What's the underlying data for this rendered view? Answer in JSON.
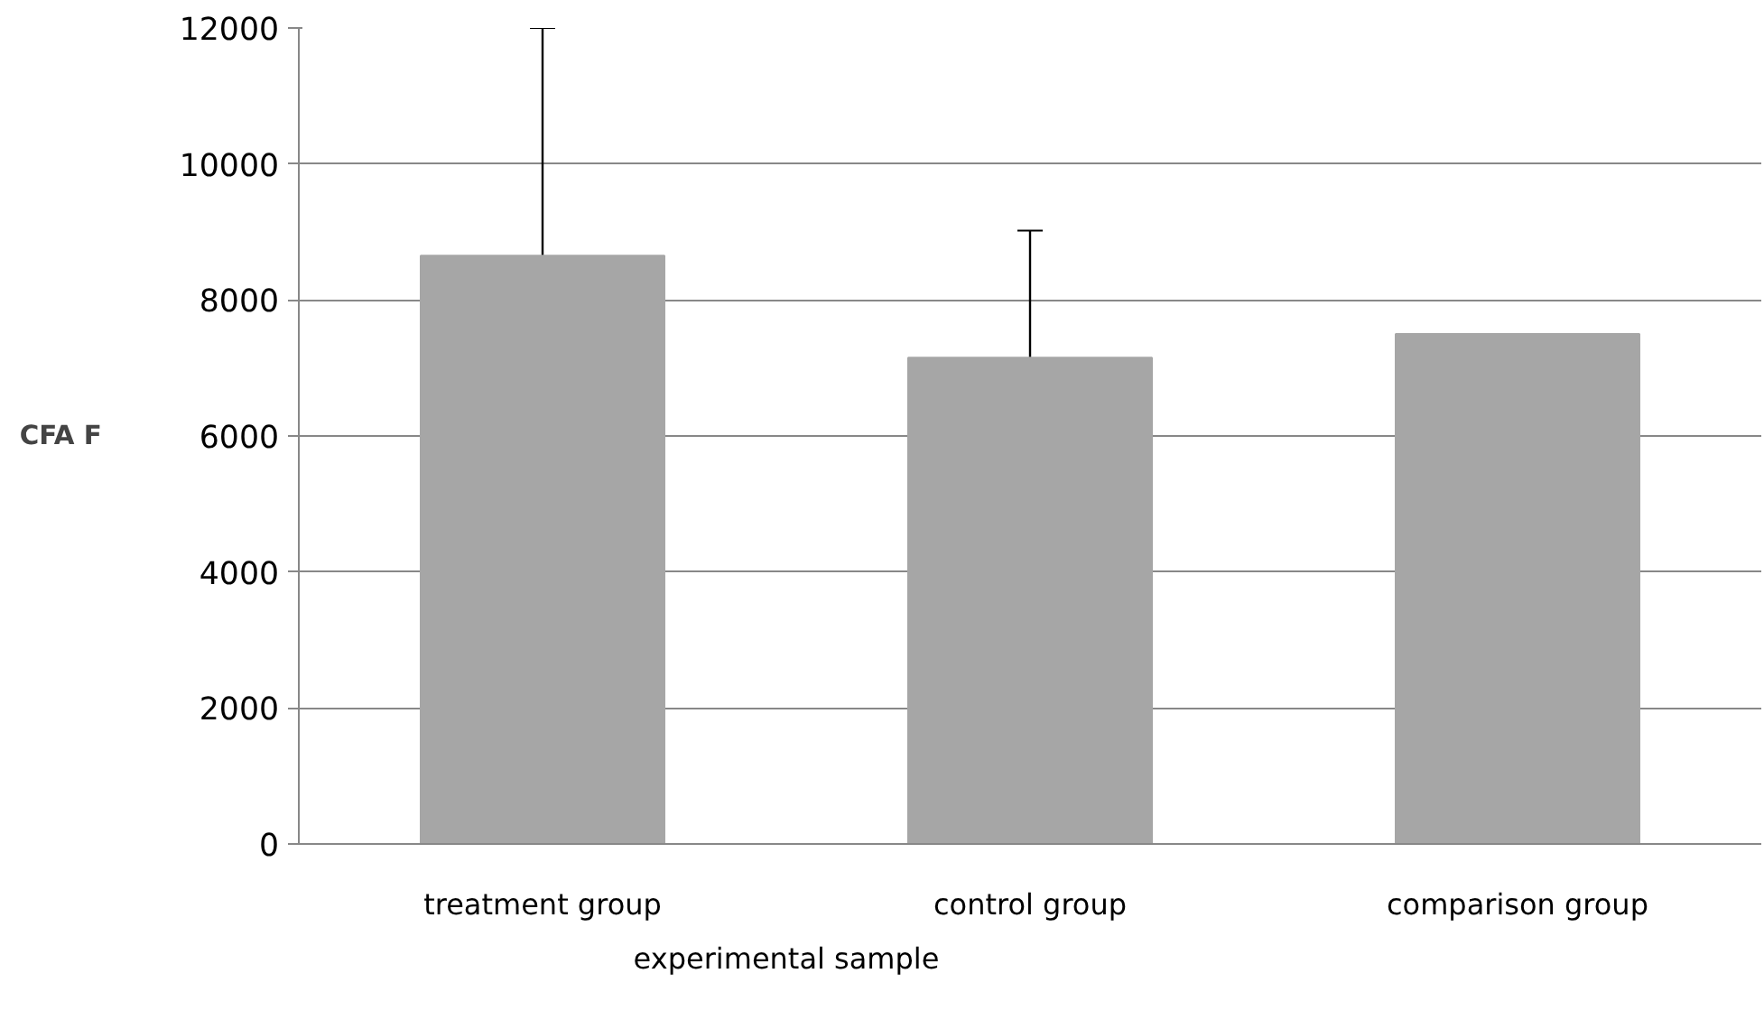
{
  "chart_data": {
    "type": "bar",
    "categories": [
      "treatment group",
      "control group",
      "comparison group"
    ],
    "values": [
      8650,
      7150,
      7500
    ],
    "errors": [
      3350,
      1870,
      null
    ],
    "color": "#a6a6a6",
    "ylabel": "CFA F",
    "ylim": [
      0,
      12000
    ],
    "yticks": [
      0,
      2000,
      4000,
      6000,
      8000,
      10000,
      12000
    ],
    "grid": "y",
    "annotations": [
      "experimental sample"
    ]
  }
}
